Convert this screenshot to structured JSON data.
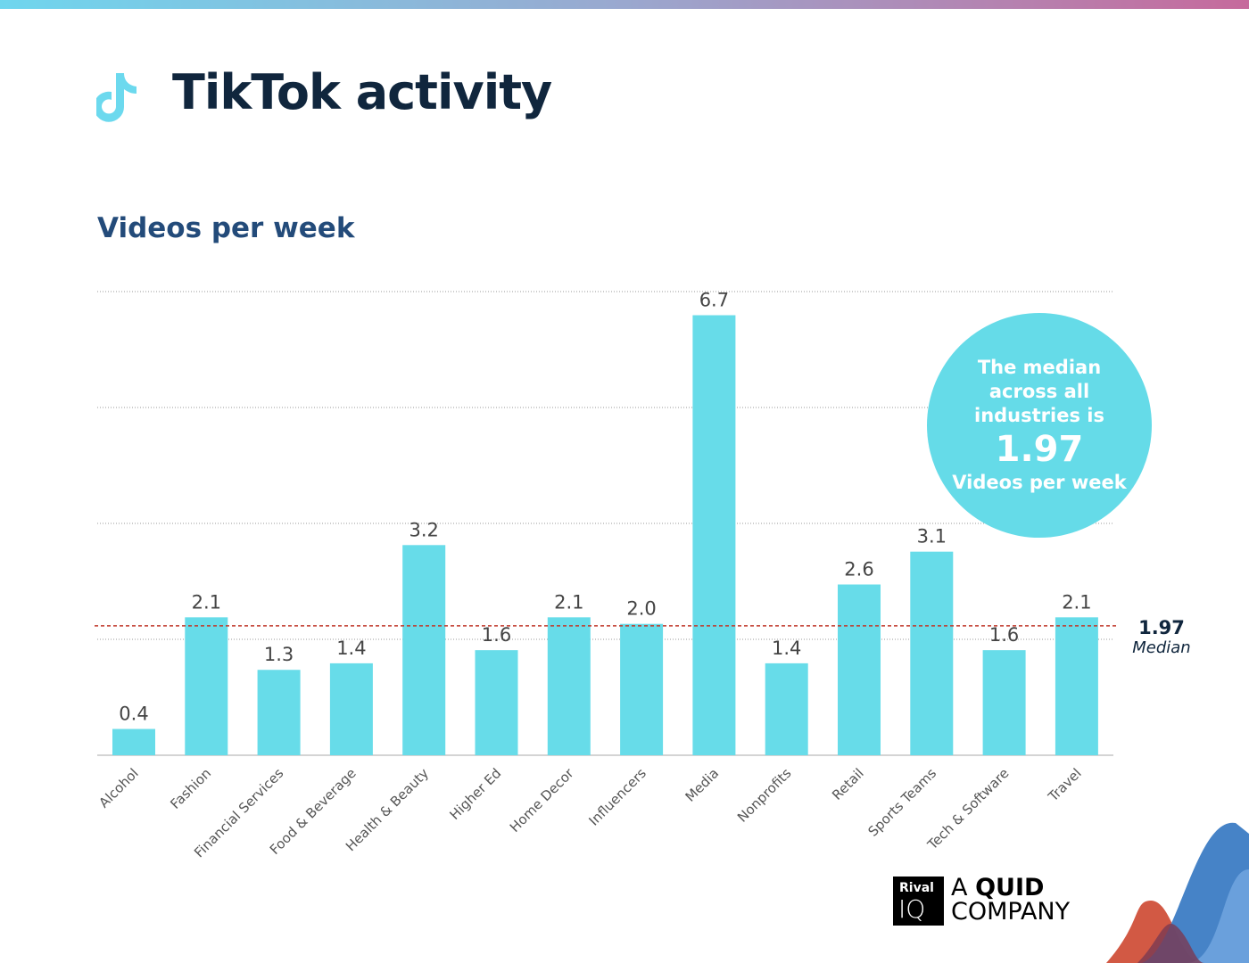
{
  "header": {
    "title": "TikTok activity",
    "icon": "tiktok-icon"
  },
  "subtitle": "Videos per week",
  "callout": {
    "text": "The median across all industries is",
    "value": "1.97",
    "unit": "Videos per week"
  },
  "median_label": {
    "value": "1.97",
    "text": "Median"
  },
  "logo": {
    "brand": "Rival",
    "brand2": "IQ",
    "tag1": "A",
    "tag2": "QUID",
    "tag3": "COMPANY"
  },
  "colors": {
    "bar": "#67dce9",
    "median_line": "#c0392b",
    "title": "#10263d",
    "subtitle": "#234b7a"
  },
  "chart_data": {
    "type": "bar",
    "categories": [
      "Alcohol",
      "Fashion",
      "Financial Services",
      "Food & Beverage",
      "Health & Beauty",
      "Higher Ed",
      "Home Decor",
      "Influencers",
      "Media",
      "Nonprofits",
      "Retail",
      "Sports Teams",
      "Tech & Software",
      "Travel"
    ],
    "values": [
      0.4,
      2.1,
      1.3,
      1.4,
      3.2,
      1.6,
      2.1,
      2.0,
      6.7,
      1.4,
      2.6,
      3.1,
      1.6,
      2.1
    ],
    "labels": [
      "0.4",
      "2.1",
      "1.3",
      "1.4",
      "3.2",
      "1.6",
      "2.1",
      "2.0",
      "6.7",
      "1.4",
      "2.6",
      "3.1",
      "1.6",
      "2.1"
    ],
    "median": 1.97,
    "grid": true,
    "ylim": [
      0,
      7.06
    ]
  }
}
